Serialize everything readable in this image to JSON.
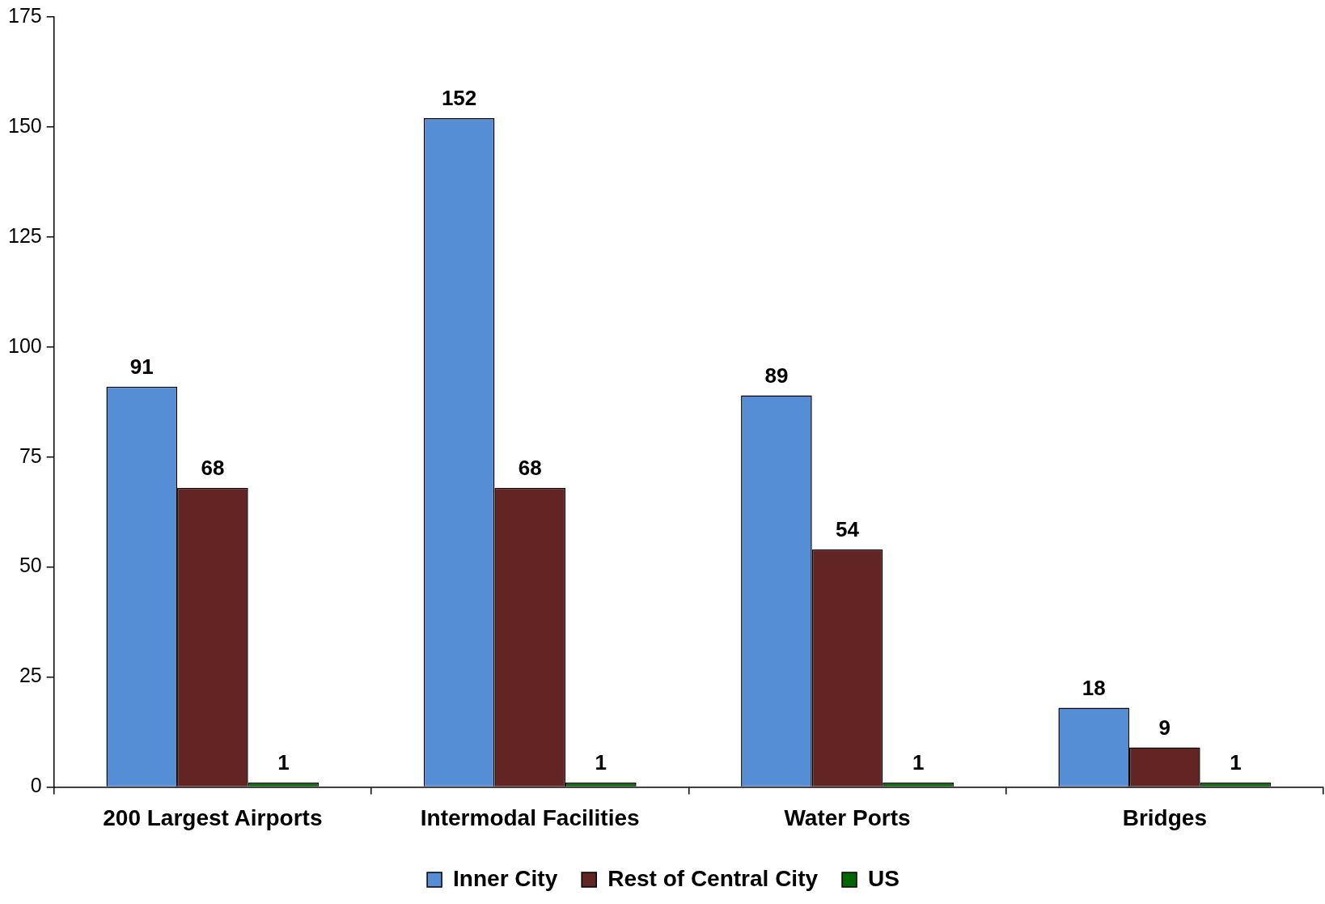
{
  "chart_data": {
    "type": "bar",
    "categories": [
      "200 Largest Airports",
      "Intermodal Facilities",
      "Water Ports",
      "Bridges"
    ],
    "series": [
      {
        "name": "Inner City",
        "color": "#558ed5",
        "values": [
          91,
          152,
          89,
          18
        ]
      },
      {
        "name": "Rest of Central City",
        "color": "#632523",
        "values": [
          68,
          68,
          54,
          9
        ]
      },
      {
        "name": "US",
        "color": "#006600",
        "values": [
          1,
          1,
          1,
          1
        ]
      }
    ],
    "ylim": [
      0,
      175
    ],
    "yticks": [
      0,
      25,
      50,
      75,
      100,
      125,
      150,
      175
    ],
    "grid": false,
    "legend": "bottom",
    "data_labels": true
  }
}
